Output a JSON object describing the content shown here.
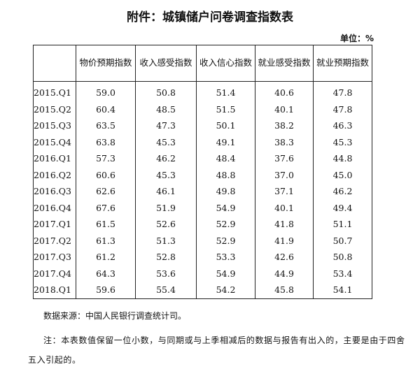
{
  "header": {
    "title": "附件：城镇储户问卷调查指数表",
    "unit": "单位：%"
  },
  "table": {
    "columns": [
      "物价预期指数",
      "收入感受指数",
      "收入信心指数",
      "就业感受指数",
      "就业预期指数"
    ],
    "rows": [
      [
        "2015.Q1",
        "59.0",
        "50.8",
        "51.4",
        "40.6",
        "47.8"
      ],
      [
        "2015.Q2",
        "60.4",
        "48.5",
        "51.5",
        "40.1",
        "47.8"
      ],
      [
        "2015.Q3",
        "63.5",
        "47.3",
        "50.1",
        "38.2",
        "46.3"
      ],
      [
        "2015.Q4",
        "63.8",
        "45.3",
        "49.1",
        "38.3",
        "45.3"
      ],
      [
        "2016.Q1",
        "57.3",
        "46.2",
        "48.4",
        "37.6",
        "44.8"
      ],
      [
        "2016.Q2",
        "60.6",
        "45.3",
        "48.8",
        "37.0",
        "45.0"
      ],
      [
        "2016.Q3",
        "62.6",
        "46.1",
        "49.8",
        "37.1",
        "46.2"
      ],
      [
        "2016.Q4",
        "67.6",
        "51.9",
        "54.9",
        "40.1",
        "49.4"
      ],
      [
        "2017.Q1",
        "61.5",
        "52.6",
        "52.9",
        "41.8",
        "51.1"
      ],
      [
        "2017.Q2",
        "61.3",
        "51.3",
        "52.9",
        "41.9",
        "50.7"
      ],
      [
        "2017.Q3",
        "61.2",
        "52.8",
        "53.3",
        "42.6",
        "50.8"
      ],
      [
        "2017.Q4",
        "64.3",
        "53.6",
        "54.9",
        "44.9",
        "53.4"
      ],
      [
        "2018.Q1",
        "59.6",
        "55.4",
        "54.2",
        "45.8",
        "54.1"
      ]
    ]
  },
  "footer": {
    "source": "数据来源：中国人民银行调查统计司。",
    "note": "注：本表数值保留一位小数，与同期或与上季相减后的数据与报告有出入的，主要是由于四舍五入引起的。"
  }
}
